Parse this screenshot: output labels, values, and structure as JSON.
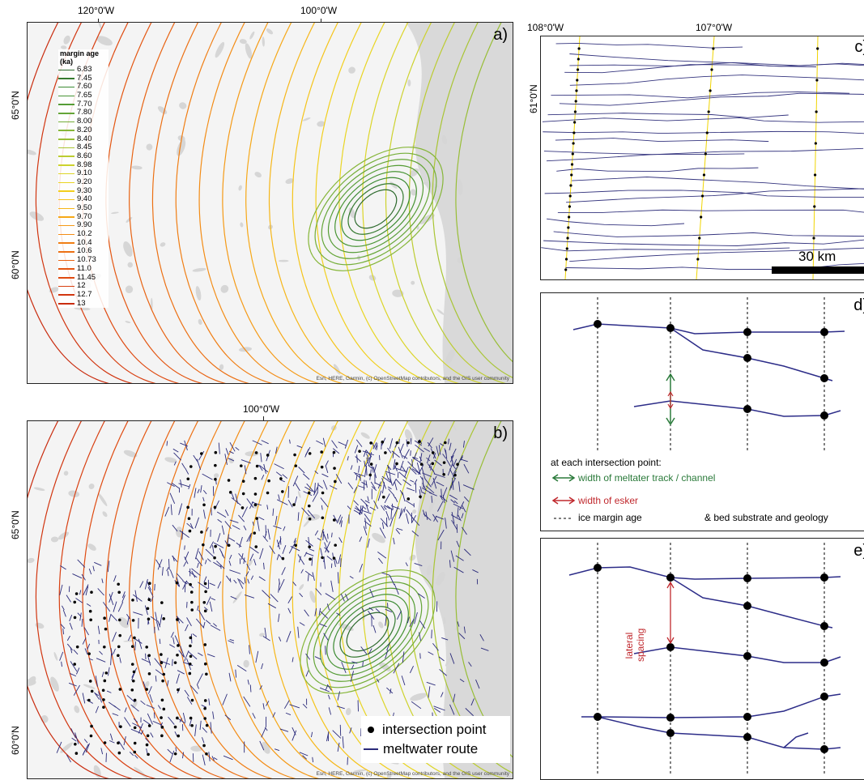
{
  "panel_a": {
    "label": "a)",
    "lon_labels": [
      "120°0'W",
      "100°0'W"
    ],
    "lat_labels": [
      "65°0'N",
      "60°0'N"
    ],
    "legend_title": "margin age (ka)",
    "legend_items": [
      {
        "age": "6.83",
        "color": "#2d6a2d"
      },
      {
        "age": "7.45",
        "color": "#357a30"
      },
      {
        "age": "7.60",
        "color": "#3b8a32"
      },
      {
        "age": "7.65",
        "color": "#479434"
      },
      {
        "age": "7.70",
        "color": "#559c36"
      },
      {
        "age": "7.80",
        "color": "#64a537"
      },
      {
        "age": "8.00",
        "color": "#74ae38"
      },
      {
        "age": "8.20",
        "color": "#86b638"
      },
      {
        "age": "8.40",
        "color": "#98be36"
      },
      {
        "age": "8.45",
        "color": "#a9c534"
      },
      {
        "age": "8.60",
        "color": "#bccc31"
      },
      {
        "age": "8.98",
        "color": "#cdd22d"
      },
      {
        "age": "9.10",
        "color": "#dcd528"
      },
      {
        "age": "9.20",
        "color": "#e9d522"
      },
      {
        "age": "9.30",
        "color": "#f2cf1d"
      },
      {
        "age": "9.40",
        "color": "#f5c41a"
      },
      {
        "age": "9.50",
        "color": "#f6b618"
      },
      {
        "age": "9.70",
        "color": "#f6a817"
      },
      {
        "age": "9.90",
        "color": "#f59a16"
      },
      {
        "age": "10.2",
        "color": "#f38c15"
      },
      {
        "age": "10.4",
        "color": "#f07e14"
      },
      {
        "age": "10.6",
        "color": "#ec7013"
      },
      {
        "age": "10.73",
        "color": "#e86312"
      },
      {
        "age": "11.0",
        "color": "#e45611"
      },
      {
        "age": "11.45",
        "color": "#df4a10"
      },
      {
        "age": "12",
        "color": "#d83f10"
      },
      {
        "age": "12.7",
        "color": "#d1350f"
      },
      {
        "age": "13",
        "color": "#c92c0e"
      }
    ],
    "attribution": "Esri, HERE, Garmin, (c) OpenStreetMap contributors, and the GIS user community"
  },
  "panel_b": {
    "label": "b)",
    "lon_labels": [
      "100°0'W"
    ],
    "lat_labels": [
      "65°0'N",
      "60°0'N"
    ],
    "legend": {
      "point_label": "intersection point",
      "route_label": "meltwater route",
      "route_color": "#2a2a7a"
    },
    "attribution": "Esri, HERE, Garmin, (c) OpenStreetMap contributors, and the GIS user community"
  },
  "panel_c": {
    "label": "c)",
    "lon_labels": [
      "108°0'W",
      "107°0'W"
    ],
    "lat_labels": [
      "61°0'N"
    ],
    "scale_label": "30 km"
  },
  "panel_d": {
    "label": "d)",
    "caption": "at each intersection point:",
    "green_label": "width of meltater track / channel",
    "red_label": "width of esker",
    "dash_label": "ice margin age",
    "extra_label": "& bed substrate and geology",
    "green_color": "#2a7a3a",
    "red_color": "#c0282d"
  },
  "panel_e": {
    "label": "e)",
    "spacing_label_1": "lateral",
    "spacing_label_2": "spacing",
    "red_color": "#c0282d"
  }
}
